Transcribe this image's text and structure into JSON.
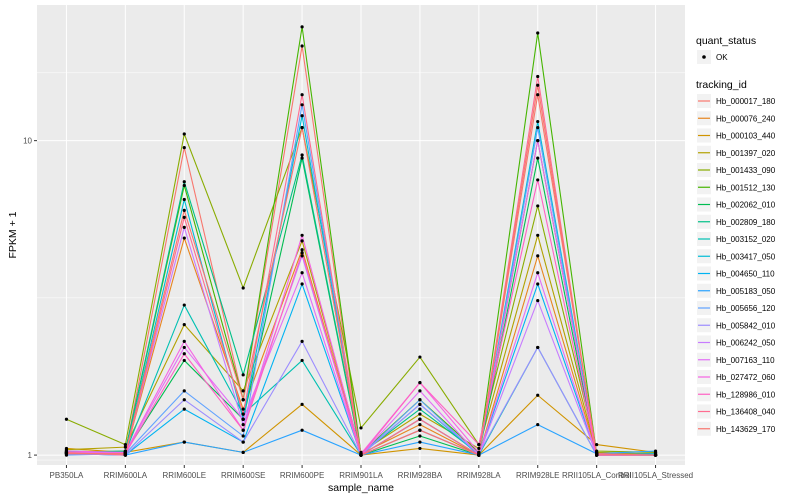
{
  "chart_data": {
    "type": "line",
    "xlabel": "sample_name",
    "ylabel": "FPKM + 1",
    "y_scale": "log10",
    "ylim": [
      0.93,
      27
    ],
    "y_ticks": [
      1,
      10
    ],
    "grid": true,
    "legend_position": "right",
    "categories": [
      "PB350LA",
      "RRIM600LA",
      "RRIM600LE",
      "RRIM600SE",
      "RRIM600PE",
      "RRIM901LA",
      "RRIM928BA",
      "RRIM928LA",
      "RRIM928LE",
      "RRII105LA_Control",
      "RRII105LA_Stressed"
    ],
    "point_legend": {
      "title": "quant_status",
      "items": [
        {
          "label": "OK",
          "shape": "circle"
        }
      ]
    },
    "color_legend_title": "tracking_id",
    "series": [
      {
        "name": "Hb_000017_180",
        "color": "#F8766D",
        "values": [
          1.03,
          1.02,
          9.5,
          1.5,
          20.0,
          1.0,
          1.3,
          1.0,
          14.0,
          1.02,
          1.0
        ]
      },
      {
        "name": "Hb_000076_240",
        "color": "#E7851E",
        "values": [
          1.02,
          1.01,
          4.9,
          1.4,
          4.5,
          1.01,
          1.25,
          1.0,
          4.3,
          1.01,
          1.0
        ]
      },
      {
        "name": "Hb_000103_440",
        "color": "#D09400",
        "values": [
          1.05,
          1.02,
          1.1,
          1.02,
          1.45,
          1.0,
          1.05,
          1.0,
          1.55,
          1.08,
          1.02
        ]
      },
      {
        "name": "Hb_001397_020",
        "color": "#B2A100",
        "values": [
          1.04,
          1.06,
          2.6,
          1.6,
          4.8,
          1.02,
          1.35,
          1.05,
          5.0,
          1.02,
          1.01
        ]
      },
      {
        "name": "Hb_001433_090",
        "color": "#89AC00",
        "values": [
          1.3,
          1.08,
          10.5,
          3.4,
          11.0,
          1.22,
          2.05,
          1.08,
          6.2,
          1.03,
          1.02
        ]
      },
      {
        "name": "Hb_001512_130",
        "color": "#45B500",
        "values": [
          1.02,
          1.03,
          7.2,
          1.5,
          23.0,
          1.01,
          1.5,
          1.02,
          22.0,
          1.01,
          1.0
        ]
      },
      {
        "name": "Hb_002062_010",
        "color": "#00BC51",
        "values": [
          1.01,
          1.02,
          2.0,
          1.3,
          8.8,
          1.0,
          1.15,
          1.0,
          8.8,
          1.0,
          1.0
        ]
      },
      {
        "name": "Hb_002809_180",
        "color": "#00C087",
        "values": [
          1.02,
          1.03,
          7.4,
          1.8,
          9.0,
          1.01,
          1.4,
          1.01,
          10.0,
          1.01,
          1.0
        ]
      },
      {
        "name": "Hb_003152_020",
        "color": "#00C0B2",
        "values": [
          1.03,
          1.02,
          3.0,
          1.35,
          2.0,
          1.0,
          1.3,
          1.0,
          2.2,
          1.0,
          1.0
        ]
      },
      {
        "name": "Hb_003417_050",
        "color": "#00BCD6",
        "values": [
          1.02,
          1.01,
          6.5,
          1.3,
          12.0,
          1.0,
          1.45,
          1.0,
          11.5,
          1.01,
          1.0
        ]
      },
      {
        "name": "Hb_004650_110",
        "color": "#00B3F2",
        "values": [
          1.01,
          1.0,
          1.4,
          1.1,
          3.5,
          1.0,
          1.2,
          1.0,
          3.5,
          1.0,
          1.01
        ]
      },
      {
        "name": "Hb_005183_050",
        "color": "#29A3FF",
        "values": [
          1.01,
          1.0,
          1.1,
          1.02,
          1.2,
          1.0,
          1.1,
          1.0,
          1.25,
          1.01,
          1.03
        ]
      },
      {
        "name": "Hb_005656_120",
        "color": "#61A3FF",
        "values": [
          1.0,
          1.01,
          1.6,
          1.15,
          13.0,
          1.0,
          1.5,
          1.0,
          11.0,
          1.0,
          1.0
        ]
      },
      {
        "name": "Hb_005842_010",
        "color": "#9C8DFF",
        "values": [
          1.01,
          1.0,
          1.5,
          1.1,
          2.3,
          1.0,
          1.45,
          1.01,
          2.2,
          1.0,
          1.0
        ]
      },
      {
        "name": "Hb_006242_050",
        "color": "#C77CFF",
        "values": [
          1.02,
          1.01,
          5.3,
          1.25,
          4.3,
          1.0,
          1.2,
          1.0,
          3.1,
          1.0,
          1.0
        ]
      },
      {
        "name": "Hb_007163_110",
        "color": "#E36EF6",
        "values": [
          1.02,
          1.02,
          2.2,
          1.3,
          3.8,
          1.0,
          1.6,
          1.0,
          3.8,
          1.0,
          1.0
        ]
      },
      {
        "name": "Hb_027472_060",
        "color": "#F564E3",
        "values": [
          1.03,
          1.02,
          2.3,
          1.2,
          5.0,
          1.01,
          1.7,
          1.02,
          10.0,
          1.01,
          1.0
        ]
      },
      {
        "name": "Hb_128986_010",
        "color": "#FF61C3",
        "values": [
          1.01,
          1.01,
          2.1,
          1.2,
          4.4,
          1.0,
          1.7,
          1.08,
          7.5,
          1.0,
          1.0
        ]
      },
      {
        "name": "Hb_136408_040",
        "color": "#FF6C90",
        "values": [
          1.02,
          1.0,
          5.7,
          1.35,
          14.0,
          1.0,
          1.3,
          1.0,
          16.0,
          1.0,
          1.0
        ]
      },
      {
        "name": "Hb_143629_170",
        "color": "#F8766D",
        "values": [
          1.01,
          1.01,
          6.0,
          1.5,
          11.0,
          1.0,
          1.2,
          1.0,
          15.0,
          1.01,
          1.0
        ]
      }
    ]
  }
}
